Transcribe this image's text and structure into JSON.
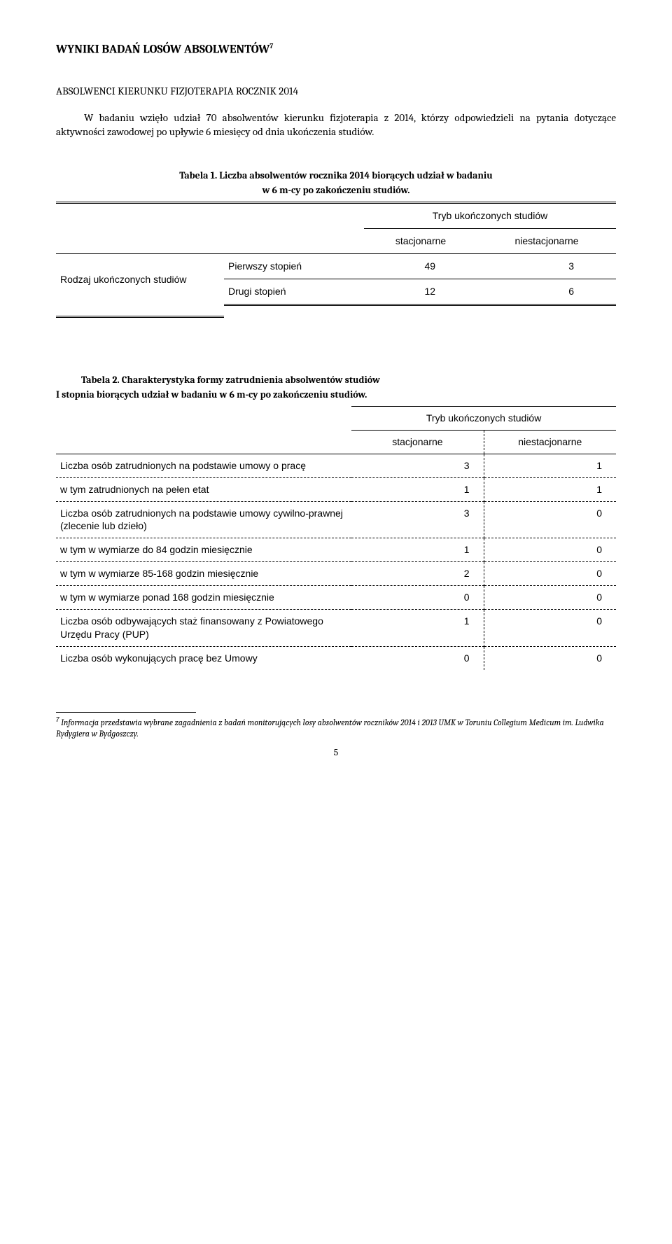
{
  "heading": "WYNIKI BADAŃ LOSÓW ABSOLWENTÓW",
  "heading_fn": "7",
  "subheading": "ABSOLWENCI KIERUNKU FIZJOTERAPIA ROCZNIK 2014",
  "intro": "W badaniu wzięło udział 70 absolwentów kierunku fizjoterapia z 2014, którzy odpowiedzieli na pytania dotyczące aktywności zawodowej po upływie 6 miesięcy od dnia ukończenia studiów.",
  "table1": {
    "caption_line1": "Tabela 1. Liczba absolwentów rocznika 2014 biorących udział w badaniu",
    "caption_line2": "w 6 m-cy po zakończeniu studiów.",
    "super_header": "Tryb ukończonych studiów",
    "col_stac": "stacjonarne",
    "col_niestac": "niestacjonarne",
    "row_label": "Rodzaj ukończonych studiów",
    "rows": [
      {
        "label": "Pierwszy stopień",
        "stac": "49",
        "niestac": "3"
      },
      {
        "label": "Drugi stopień",
        "stac": "12",
        "niestac": "6"
      }
    ]
  },
  "table2": {
    "caption_line1": "Tabela 2. Charakterystyka formy zatrudnienia absolwentów studiów",
    "caption_line2": "I stopnia biorących udział w badaniu w 6 m-cy po zakończeniu studiów.",
    "super_header": "Tryb ukończonych studiów",
    "col_stac": "stacjonarne",
    "col_niestac": "niestacjonarne",
    "rows": [
      {
        "label": "Liczba osób zatrudnionych na podstawie umowy o pracę",
        "stac": "3",
        "niestac": "1",
        "dashed": true
      },
      {
        "label": "w tym zatrudnionych na pełen etat",
        "stac": "1",
        "niestac": "1",
        "dashed": true
      },
      {
        "label": "Liczba osób zatrudnionych na podstawie umowy cywilno-prawnej (zlecenie lub dzieło)",
        "stac": "3",
        "niestac": "0",
        "dashed": true
      },
      {
        "label": "w tym w wymiarze do 84 godzin miesięcznie",
        "stac": "1",
        "niestac": "0",
        "dashed": true
      },
      {
        "label": "w tym w wymiarze 85-168 godzin miesięcznie",
        "stac": "2",
        "niestac": "0",
        "dashed": true
      },
      {
        "label": "w tym w wymiarze ponad 168 godzin miesięcznie",
        "stac": "0",
        "niestac": "0",
        "dashed": true
      },
      {
        "label": "Liczba osób odbywających staż finansowany z Powiatowego Urzędu Pracy (PUP)",
        "stac": "1",
        "niestac": "0",
        "dashed": true
      },
      {
        "label": "Liczba osób wykonujących pracę bez Umowy",
        "stac": "0",
        "niestac": "0",
        "dashed": false
      }
    ]
  },
  "footnote_marker": "7",
  "footnote_text": "Informacja przedstawia wybrane zagadnienia z badań monitorujących losy absolwentów roczników 2014 i 2013 UMK w Toruniu Collegium Medicum im. Ludwika Rydygiera w Bydgoszczy.",
  "page_number": "5"
}
